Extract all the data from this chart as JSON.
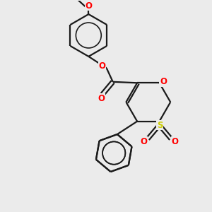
{
  "background_color": "#ebebeb",
  "bond_color": "#1a1a1a",
  "oxygen_color": "#ff0000",
  "sulfur_color": "#cccc00",
  "line_width": 1.6,
  "figsize": [
    3.0,
    3.0
  ],
  "dpi": 100,
  "xlim": [
    0,
    10
  ],
  "ylim": [
    0,
    10
  ],
  "font_size": 8.5
}
